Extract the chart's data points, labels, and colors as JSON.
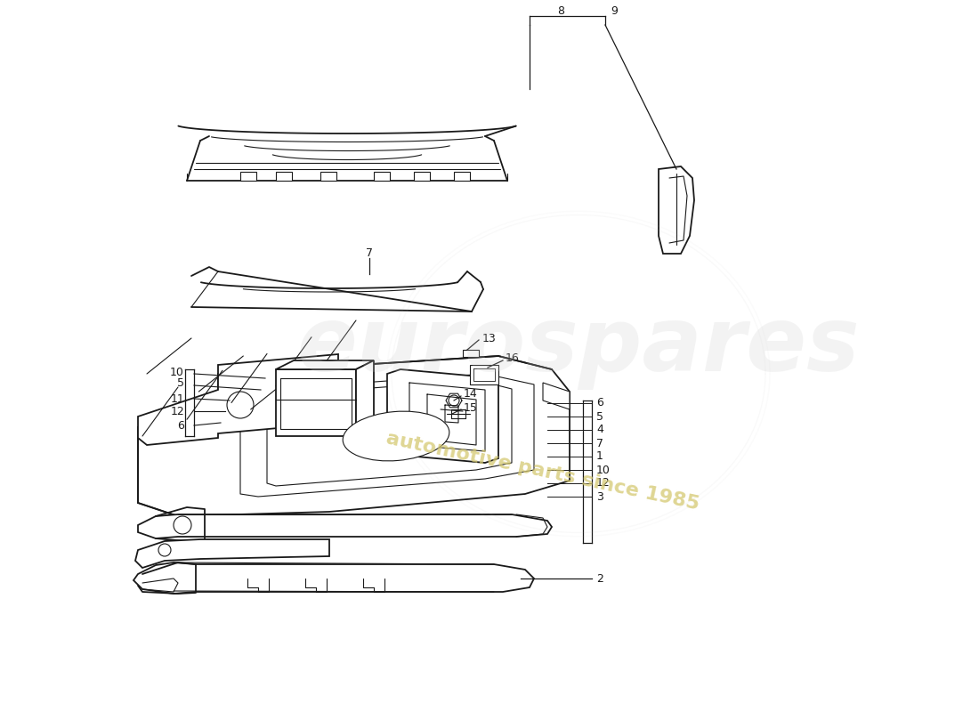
{
  "background_color": "#ffffff",
  "line_color": "#1a1a1a",
  "watermark_logo_color": "#cccccc",
  "watermark_text_color": "#d4c870",
  "figsize": [
    11.0,
    8.0
  ],
  "dpi": 100
}
